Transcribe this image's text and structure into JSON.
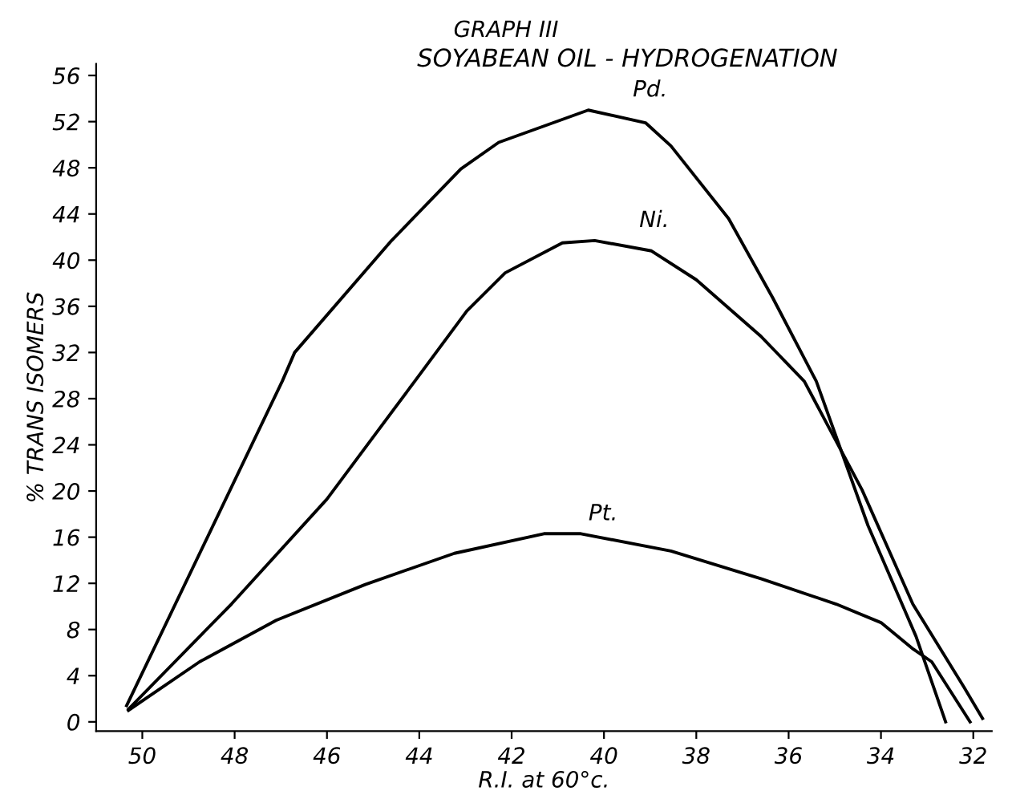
{
  "chart_data": {
    "type": "line",
    "title": "GRAPH III",
    "subtitle": "SOYABEAN OIL - HYDROGENATION",
    "xlabel": "R.I. at 60°c.",
    "ylabel": "% TRANS ISOMERS",
    "xlim": [
      51,
      31.6
    ],
    "ylim": [
      -0.8,
      57
    ],
    "xticks": [
      50,
      48,
      46,
      44,
      42,
      40,
      38,
      36,
      34,
      32
    ],
    "yticks": [
      0,
      4,
      8,
      12,
      16,
      20,
      24,
      28,
      32,
      36,
      40,
      44,
      48,
      52,
      56
    ],
    "grid": false,
    "legend": false,
    "marker": "none",
    "line_style": "solid",
    "series": [
      {
        "name": "Pd.",
        "color": "#000000",
        "x": [
          50.34,
          46.97,
          46.7,
          44.6,
          43.1,
          42.28,
          40.34,
          39.1,
          38.55,
          37.3,
          36.34,
          35.4,
          34.28,
          33.24,
          32.6
        ],
        "values": [
          1.4,
          29.5,
          32,
          41.7,
          47.9,
          50.2,
          53.0,
          51.9,
          49.9,
          43.6,
          36.7,
          29.5,
          17,
          7.4,
          0
        ]
      },
      {
        "name": "Ni.",
        "color": "#000000",
        "x": [
          50.3,
          48.07,
          46.0,
          44.1,
          42.97,
          42.14,
          40.9,
          40.2,
          38.97,
          38.0,
          36.6,
          35.66,
          34.41,
          33.31,
          32.2,
          31.8
        ],
        "values": [
          1.1,
          10.2,
          19.3,
          29.5,
          35.6,
          38.9,
          41.5,
          41.7,
          40.8,
          38.3,
          33.4,
          29.5,
          20.1,
          10.2,
          3.0,
          0.3
        ]
      },
      {
        "name": "Pt.",
        "color": "#000000",
        "x": [
          50.3,
          48.76,
          47.1,
          45.17,
          43.24,
          41.3,
          40.5,
          38.55,
          36.6,
          34.97,
          34.0,
          33.3,
          32.9,
          32.07
        ],
        "values": [
          1.0,
          5.2,
          8.8,
          11.9,
          14.6,
          16.3,
          16.3,
          14.8,
          12.4,
          10.2,
          8.6,
          6.3,
          5.2,
          0
        ]
      }
    ]
  }
}
